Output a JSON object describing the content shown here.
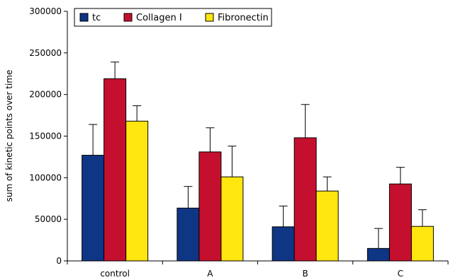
{
  "chart_data": {
    "type": "bar",
    "title": "",
    "xlabel": "",
    "ylabel": "sum of kinetic points over time",
    "ylim": [
      0,
      300000
    ],
    "yticks": [
      0,
      50000,
      100000,
      150000,
      200000,
      250000,
      300000
    ],
    "ytick_labels": [
      "0",
      "50000",
      "100000",
      "150000",
      "200000",
      "250000",
      "300000"
    ],
    "grid": false,
    "legend_position": "top-left",
    "error_bars": "upper",
    "categories": [
      "control",
      "A",
      "B",
      "C"
    ],
    "series": [
      {
        "name": "tc",
        "color": "#0f3585",
        "values": [
          127000,
          63500,
          41000,
          15000
        ],
        "errors": [
          37000,
          26000,
          25000,
          24000
        ]
      },
      {
        "name": "Collagen I",
        "color": "#c4102e",
        "values": [
          219000,
          131000,
          148000,
          92500
        ],
        "errors": [
          20000,
          29000,
          40000,
          20000
        ]
      },
      {
        "name": "Fibronectin",
        "color": "#ffe60f",
        "values": [
          168000,
          101000,
          84000,
          41500
        ],
        "errors": [
          18500,
          37000,
          17000,
          20000
        ]
      }
    ]
  }
}
